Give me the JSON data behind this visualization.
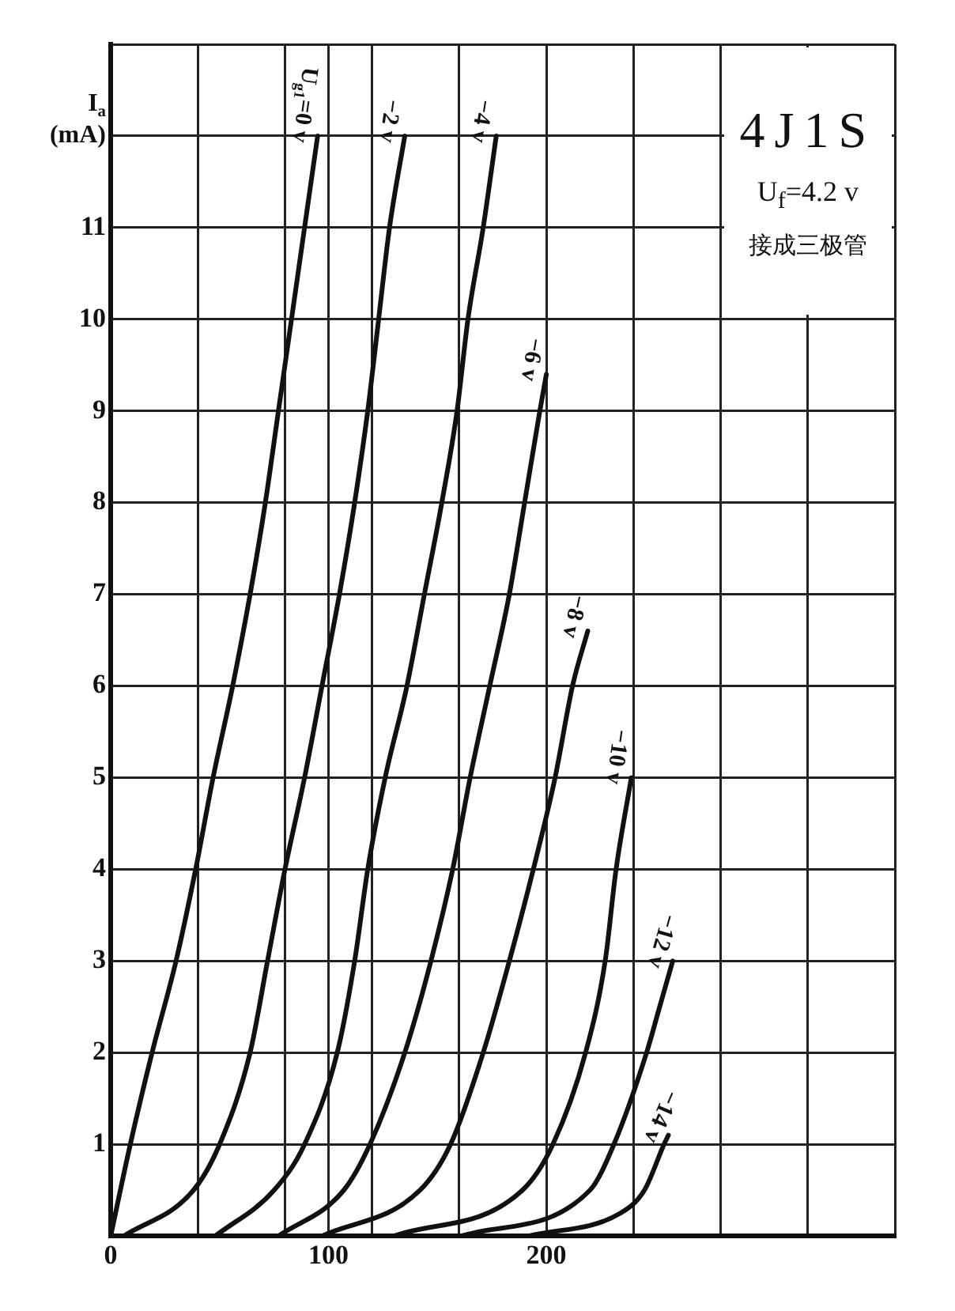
{
  "chart_data": {
    "type": "line",
    "title": "4J1S",
    "subtitle": "U$_{f}$=4.2 v",
    "annotations": [
      "接成三极管"
    ],
    "ylabel": "I$_{a}$\n(mA)",
    "xlim": [
      0,
      360
    ],
    "xticks": [
      0,
      {
        "value": 40,
        "label": null
      },
      {
        "value": 80,
        "label": null
      },
      100,
      {
        "value": 120,
        "label": null
      },
      {
        "value": 160,
        "label": null
      },
      200,
      {
        "value": 240,
        "label": null
      },
      {
        "value": 280,
        "label": null
      },
      {
        "value": 320,
        "label": null
      },
      {
        "value": 360,
        "label": null
      }
    ],
    "ylim": [
      0,
      13
    ],
    "yticks": [
      {
        "value": 0,
        "label": null
      },
      1,
      2,
      3,
      4,
      5,
      6,
      7,
      8,
      9,
      10,
      11,
      {
        "value": 12,
        "label": null
      },
      {
        "value": 13,
        "label": null
      }
    ],
    "grid": true,
    "legend": false,
    "marker": "none",
    "line_style": "solid",
    "series": [
      {
        "name": "U$_{g1}$=0 v",
        "color": "#111111",
        "x": [
          0,
          9,
          19,
          30,
          39,
          47,
          56,
          64,
          71,
          77,
          83,
          89,
          95
        ],
        "values": [
          0,
          1,
          2,
          3,
          4,
          5,
          6,
          7,
          8,
          9,
          10,
          11,
          12
        ]
      },
      {
        "name": "−2 v",
        "color": "#111111",
        "x": [
          6,
          38,
          50,
          64,
          72,
          80,
          89,
          97,
          105,
          112,
          118,
          123,
          128,
          135
        ],
        "values": [
          0,
          0.5,
          1,
          2,
          3,
          4,
          5,
          6,
          7,
          8,
          9,
          10,
          11,
          12
        ]
      },
      {
        "name": "−4 v",
        "color": "#111111",
        "x": [
          48,
          75,
          89,
          104,
          112,
          118,
          126,
          136,
          144,
          152,
          159,
          164,
          171,
          177
        ],
        "values": [
          0,
          0.5,
          1,
          2,
          3,
          4,
          5,
          6,
          7,
          8,
          9,
          10,
          11,
          12
        ]
      },
      {
        "name": "−6 v",
        "color": "#111111",
        "x": [
          77,
          107,
          119,
          135,
          147,
          157,
          165,
          174,
          183,
          190,
          197,
          200
        ],
        "values": [
          0,
          0.5,
          1,
          2,
          3,
          4,
          5,
          6,
          7,
          8,
          9,
          9.4
        ]
      },
      {
        "name": "−8 v",
        "color": "#111111",
        "x": [
          97,
          142,
          156,
          171,
          183,
          194,
          204,
          212,
          219
        ],
        "values": [
          0,
          0.5,
          1,
          2,
          3,
          4,
          5,
          6,
          6.6
        ]
      },
      {
        "name": "−10 v",
        "color": "#111111",
        "x": [
          130,
          189,
          203,
          218,
          227,
          232,
          239
        ],
        "values": [
          0,
          0.5,
          1,
          2,
          3,
          4,
          5
        ]
      },
      {
        "name": "−12 v",
        "color": "#111111",
        "x": [
          161,
          220,
          231,
          246,
          252,
          258
        ],
        "values": [
          0,
          0.5,
          1,
          2,
          2.5,
          3
        ]
      },
      {
        "name": "−14 v",
        "color": "#111111",
        "x": [
          192,
          234,
          245,
          254,
          256
        ],
        "values": [
          0,
          0.25,
          0.5,
          1,
          1.1
        ]
      }
    ]
  }
}
